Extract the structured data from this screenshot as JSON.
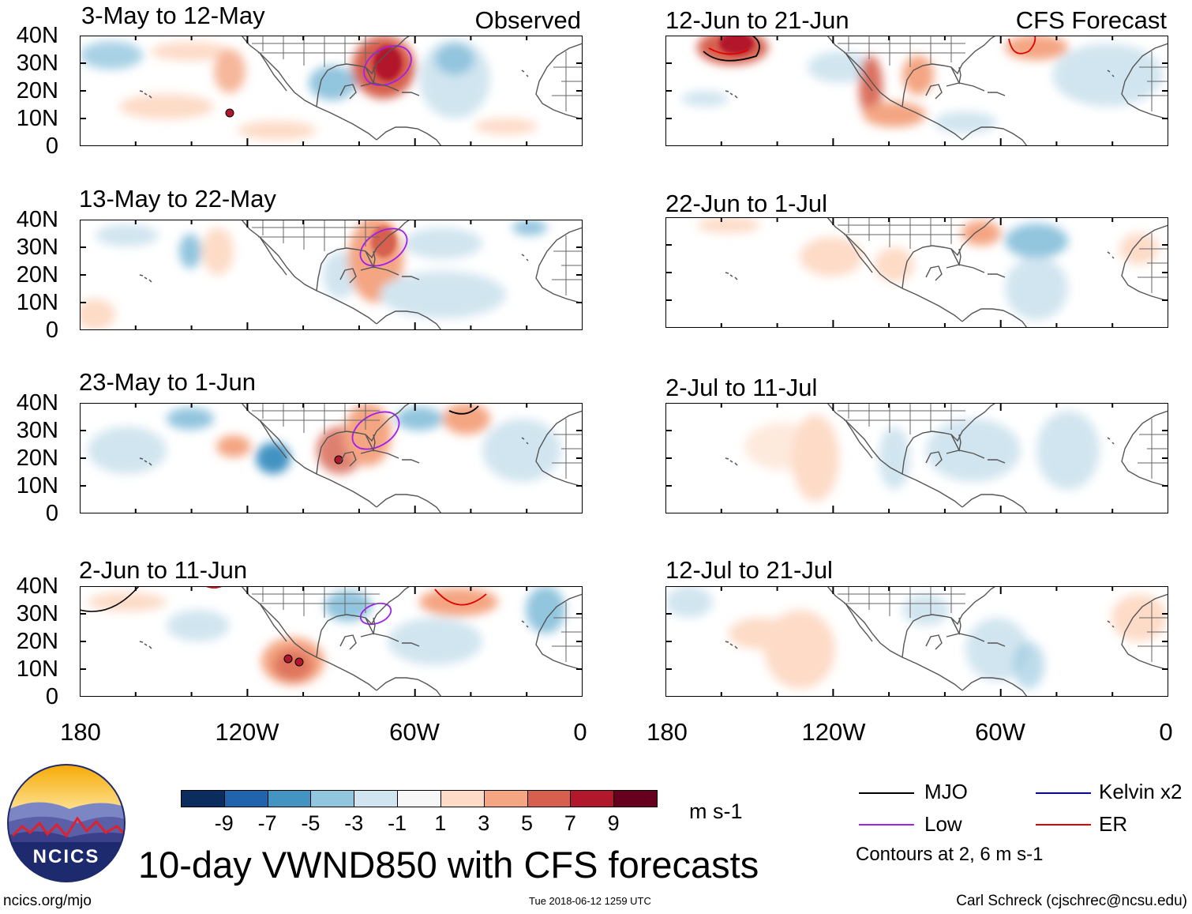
{
  "panels_observed": [
    {
      "title": "3-May to 12-May",
      "tag": "Observed"
    },
    {
      "title": "13-May to 22-May",
      "tag": ""
    },
    {
      "title": "23-May to 1-Jun",
      "tag": ""
    },
    {
      "title": "2-Jun to 11-Jun",
      "tag": ""
    }
  ],
  "panels_forecast": [
    {
      "title": "12-Jun to 21-Jun",
      "tag": "CFS Forecast"
    },
    {
      "title": "22-Jun to 1-Jul",
      "tag": ""
    },
    {
      "title": "2-Jul to 11-Jul",
      "tag": ""
    },
    {
      "title": "12-Jul to 21-Jul",
      "tag": ""
    }
  ],
  "lat_labels": [
    "40N",
    "30N",
    "20N",
    "10N",
    "0"
  ],
  "lon_labels": [
    "180",
    "120W",
    "60W",
    "0"
  ],
  "colorbar": {
    "labels": [
      "-9",
      "-7",
      "-5",
      "-3",
      "-1",
      "1",
      "3",
      "5",
      "7",
      "9"
    ],
    "colors": [
      "#0b2d5e",
      "#1f64ad",
      "#4393c3",
      "#92c5de",
      "#d1e5f0",
      "#f7f7f7",
      "#fddbc7",
      "#f4a582",
      "#d6604d",
      "#b2182b",
      "#67001f"
    ],
    "units": "m s-1"
  },
  "legend": {
    "mjo": "MJO",
    "low": "Low",
    "kelvin": "Kelvin x2",
    "er": "ER",
    "contours_note": "Contours at 2, 6 m s-1",
    "colors": {
      "mjo": "#000000",
      "low": "#a020f0",
      "kelvin": "#0000cc",
      "er": "#e00000"
    }
  },
  "logo_text": "NCICS",
  "main_title": "10-day VWND850 with CFS forecasts",
  "footer": {
    "left": "ncics.org/mjo",
    "center": "Tue 2018-06-12 1259 UTC",
    "right": "Carl Schreck (cjschrec@ncsu.edu)"
  }
}
